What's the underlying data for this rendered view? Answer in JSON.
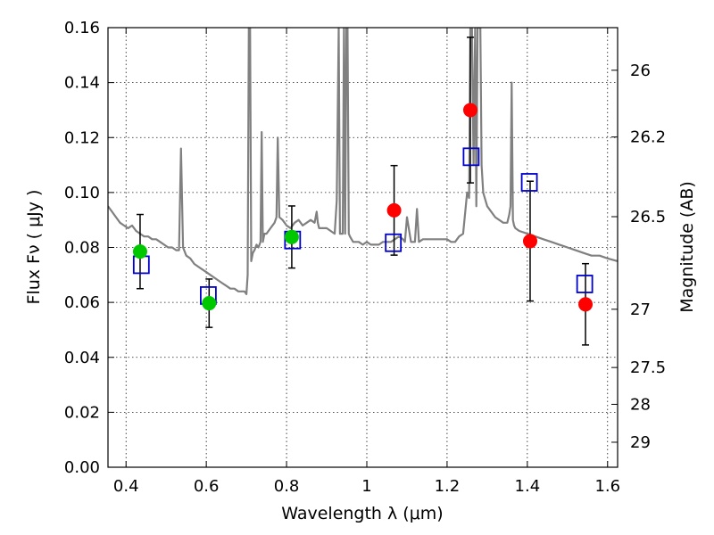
{
  "chart_data": {
    "type": "scatter",
    "xlabel": "Wavelength  λ (μm)",
    "ylabel": "Flux  Fν  ( μJy )",
    "y2label": "Magnitude (AB)",
    "xlim": [
      0.355,
      1.625
    ],
    "ylim": [
      0.0,
      0.16
    ],
    "x_ticks": [
      0.4,
      0.6,
      0.8,
      1.0,
      1.2,
      1.4,
      1.6
    ],
    "x_tick_labels": [
      "0.4",
      "0.6",
      "0.8",
      "1",
      "1.2",
      "1.4",
      "1.6"
    ],
    "y_ticks": [
      0.0,
      0.02,
      0.04,
      0.06,
      0.08,
      0.1,
      0.12,
      0.14,
      0.16
    ],
    "y_tick_labels": [
      "0.00",
      "0.02",
      "0.04",
      "0.06",
      "0.08",
      "0.10",
      "0.12",
      "0.14",
      "0.16"
    ],
    "mag_ticks": [
      {
        "label": "26",
        "flux": 0.1445
      },
      {
        "label": "26.2",
        "flux": 0.1202
      },
      {
        "label": "26.5",
        "flux": 0.0912
      },
      {
        "label": "27",
        "flux": 0.0575
      },
      {
        "label": "27.5",
        "flux": 0.0363
      },
      {
        "label": "28",
        "flux": 0.0229
      },
      {
        "label": "29",
        "flux": 0.0091
      }
    ],
    "grid": true,
    "colors": {
      "spectrum": "#808080",
      "green_points": "#00c800",
      "red_points": "#ff0000",
      "model_squares": "#0000cc",
      "errorbars": "#000000"
    },
    "series": [
      {
        "style": "spectrum",
        "x": [
          0.355,
          0.365,
          0.375,
          0.385,
          0.395,
          0.405,
          0.415,
          0.425,
          0.435,
          0.445,
          0.455,
          0.465,
          0.475,
          0.485,
          0.495,
          0.505,
          0.515,
          0.525,
          0.532,
          0.537,
          0.542,
          0.55,
          0.56,
          0.57,
          0.58,
          0.59,
          0.6,
          0.61,
          0.62,
          0.63,
          0.64,
          0.65,
          0.66,
          0.67,
          0.68,
          0.69,
          0.695,
          0.7,
          0.703,
          0.706,
          0.709,
          0.712,
          0.716,
          0.72,
          0.725,
          0.73,
          0.735,
          0.738,
          0.741,
          0.745,
          0.75,
          0.76,
          0.77,
          0.775,
          0.778,
          0.782,
          0.79,
          0.8,
          0.81,
          0.82,
          0.83,
          0.84,
          0.85,
          0.86,
          0.87,
          0.875,
          0.878,
          0.881,
          0.885,
          0.89,
          0.9,
          0.91,
          0.92,
          0.925,
          0.93,
          0.933,
          0.936,
          0.94,
          0.943,
          0.946,
          0.949,
          0.952,
          0.955,
          0.958,
          0.962,
          0.966,
          0.97,
          0.98,
          0.99,
          1.0,
          1.01,
          1.02,
          1.03,
          1.04,
          1.05,
          1.06,
          1.07,
          1.08,
          1.09,
          1.095,
          1.1,
          1.11,
          1.12,
          1.125,
          1.13,
          1.14,
          1.16,
          1.18,
          1.2,
          1.21,
          1.22,
          1.23,
          1.24,
          1.25,
          1.255,
          1.258,
          1.262,
          1.266,
          1.27,
          1.273,
          1.276,
          1.28,
          1.283,
          1.286,
          1.29,
          1.3,
          1.32,
          1.34,
          1.35,
          1.355,
          1.358,
          1.361,
          1.364,
          1.367,
          1.37,
          1.38,
          1.4,
          1.42,
          1.44,
          1.46,
          1.48,
          1.5,
          1.52,
          1.54,
          1.56,
          1.58,
          1.6,
          1.625
        ],
        "y": [
          0.095,
          0.093,
          0.091,
          0.089,
          0.088,
          0.087,
          0.088,
          0.086,
          0.085,
          0.084,
          0.084,
          0.083,
          0.083,
          0.082,
          0.081,
          0.08,
          0.08,
          0.079,
          0.079,
          0.116,
          0.08,
          0.077,
          0.076,
          0.074,
          0.073,
          0.072,
          0.071,
          0.07,
          0.069,
          0.068,
          0.067,
          0.066,
          0.065,
          0.065,
          0.064,
          0.064,
          0.064,
          0.063,
          0.07,
          0.16,
          0.16,
          0.075,
          0.078,
          0.079,
          0.081,
          0.08,
          0.082,
          0.122,
          0.082,
          0.085,
          0.085,
          0.087,
          0.089,
          0.091,
          0.12,
          0.091,
          0.09,
          0.088,
          0.087,
          0.089,
          0.09,
          0.088,
          0.089,
          0.09,
          0.089,
          0.093,
          0.089,
          0.087,
          0.087,
          0.087,
          0.087,
          0.086,
          0.085,
          0.097,
          0.16,
          0.085,
          0.085,
          0.085,
          0.16,
          0.085,
          0.16,
          0.16,
          0.085,
          0.084,
          0.083,
          0.082,
          0.082,
          0.082,
          0.081,
          0.082,
          0.081,
          0.081,
          0.081,
          0.082,
          0.082,
          0.082,
          0.083,
          0.084,
          0.083,
          0.082,
          0.091,
          0.082,
          0.082,
          0.094,
          0.082,
          0.083,
          0.083,
          0.083,
          0.083,
          0.082,
          0.082,
          0.084,
          0.085,
          0.1,
          0.098,
          0.16,
          0.16,
          0.11,
          0.16,
          0.095,
          0.16,
          0.16,
          0.16,
          0.11,
          0.1,
          0.095,
          0.091,
          0.089,
          0.089,
          0.092,
          0.095,
          0.14,
          0.09,
          0.088,
          0.087,
          0.086,
          0.085,
          0.084,
          0.083,
          0.082,
          0.081,
          0.08,
          0.079,
          0.078,
          0.077,
          0.077,
          0.076,
          0.075
        ]
      },
      {
        "style": "green-circle",
        "x": [
          0.435,
          0.607,
          0.813
        ],
        "y": [
          0.0785,
          0.0597,
          0.0838
        ],
        "err": [
          0.0135,
          0.0088,
          0.0113
        ]
      },
      {
        "style": "red-circle",
        "x": [
          1.068,
          1.258,
          1.407,
          1.545
        ],
        "y": [
          0.0935,
          0.13,
          0.0823,
          0.0593
        ],
        "err": [
          0.0163,
          0.0265,
          0.0218,
          0.0148
        ]
      },
      {
        "style": "blue-square",
        "x": [
          0.438,
          0.605,
          0.815,
          1.066,
          1.26,
          1.405,
          1.543
        ],
        "y": [
          0.0737,
          0.0625,
          0.0827,
          0.0817,
          0.113,
          0.1037,
          0.0667
        ]
      }
    ]
  }
}
